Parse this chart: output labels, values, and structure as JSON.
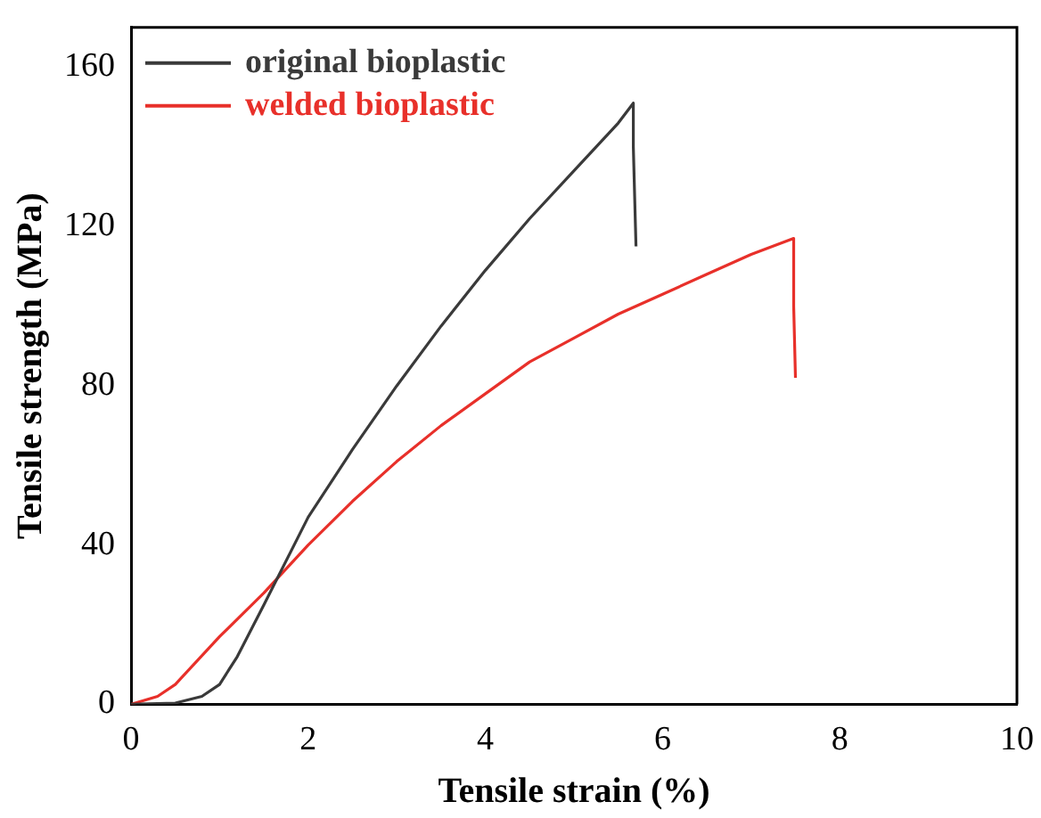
{
  "chart_data": {
    "type": "line",
    "xlabel": "Tensile strain (%)",
    "ylabel": "Tensile strength (MPa)",
    "xlim": [
      0,
      10
    ],
    "xticks": [
      0,
      2,
      4,
      6,
      8,
      10
    ],
    "ylim": [
      0,
      170
    ],
    "yticks": [
      0,
      40,
      80,
      120,
      160
    ],
    "grid": false,
    "legend": "top left",
    "marker": "none",
    "line_style": "solid",
    "series": [
      {
        "name": "original bioplastic",
        "color": "#3a3a3a",
        "x": [
          0,
          0.5,
          0.8,
          1,
          1.2,
          1.5,
          2,
          2.5,
          3,
          3.5,
          4,
          4.5,
          5,
          5.5,
          5.67,
          5.67,
          5.7
        ],
        "values": [
          0,
          0.3,
          2,
          5,
          12,
          25,
          47,
          64,
          80,
          95,
          109,
          122,
          134,
          146,
          151,
          140,
          115
        ]
      },
      {
        "name": "welded bioplastic",
        "color": "#e8302a",
        "x": [
          0,
          0.3,
          0.5,
          1,
          1.5,
          2,
          2.5,
          3,
          3.5,
          4,
          4.5,
          5,
          5.5,
          6,
          6.5,
          7,
          7.48,
          7.48,
          7.5
        ],
        "values": [
          0,
          2,
          5,
          17,
          28,
          40,
          51,
          61,
          70,
          78,
          86,
          92,
          98,
          103,
          108,
          113,
          117,
          100,
          82
        ]
      }
    ]
  }
}
